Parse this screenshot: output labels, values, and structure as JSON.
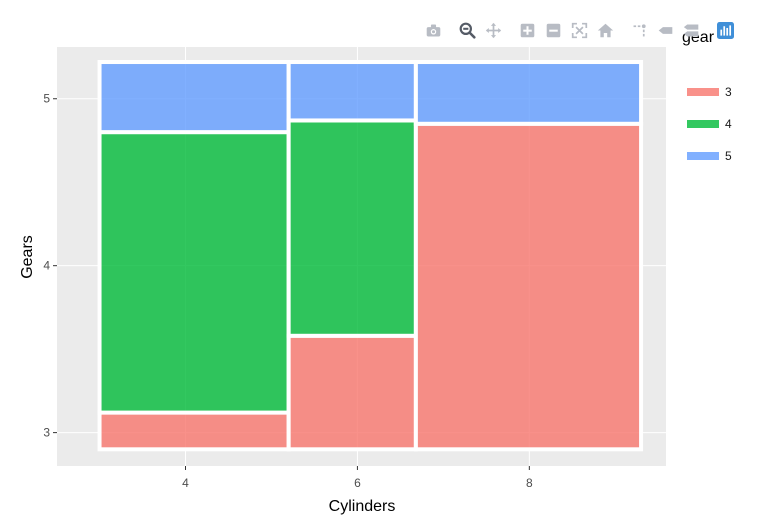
{
  "modebar": {
    "buttons": [
      {
        "name": "camera-icon",
        "title": "Download plot as a png"
      },
      {
        "name": "zoom-icon",
        "title": "Zoom"
      },
      {
        "name": "pan-icon",
        "title": "Pan"
      },
      {
        "name": "zoom-in-icon",
        "title": "Zoom in"
      },
      {
        "name": "zoom-out-icon",
        "title": "Zoom out"
      },
      {
        "name": "autoscale-icon",
        "title": "Autoscale"
      },
      {
        "name": "home-icon",
        "title": "Reset axes"
      },
      {
        "name": "spike-lines-icon",
        "title": "Toggle Spike Lines"
      },
      {
        "name": "hover-closest-icon",
        "title": "Show closest data on hover"
      },
      {
        "name": "hover-compare-icon",
        "title": "Compare data on hover"
      },
      {
        "name": "plotly-logo-icon",
        "title": "Produced with Plotly"
      }
    ]
  },
  "chart_data": {
    "type": "bar",
    "subtype": "mosaic",
    "xlabel": "Cylinders",
    "ylabel": "Gears",
    "legend_title": "gear",
    "legend_position": "right",
    "grid": true,
    "colors": {
      "3": "#F8766D",
      "4": "#00BA38",
      "5": "#619CFF",
      "panel": "#EBEBEB",
      "grid": "#FFFFFF"
    },
    "x_ticks": [
      4,
      6,
      8
    ],
    "y_ticks": [
      3,
      4,
      5
    ],
    "columns": [
      {
        "label": "4",
        "x_start": 3.0,
        "x_end": 5.2,
        "segments": [
          {
            "gear": "3",
            "y_start": 2.9,
            "y_end": 3.12
          },
          {
            "gear": "4",
            "y_start": 3.12,
            "y_end": 4.8
          },
          {
            "gear": "5",
            "y_start": 4.8,
            "y_end": 5.22
          }
        ]
      },
      {
        "label": "6",
        "x_start": 5.2,
        "x_end": 6.68,
        "segments": [
          {
            "gear": "3",
            "y_start": 2.9,
            "y_end": 3.58
          },
          {
            "gear": "4",
            "y_start": 3.58,
            "y_end": 4.87
          },
          {
            "gear": "5",
            "y_start": 4.87,
            "y_end": 5.22
          }
        ]
      },
      {
        "label": "8",
        "x_start": 6.68,
        "x_end": 9.3,
        "segments": [
          {
            "gear": "3",
            "y_start": 2.9,
            "y_end": 4.85
          },
          {
            "gear": "5",
            "y_start": 4.85,
            "y_end": 5.22
          }
        ]
      }
    ],
    "legend": [
      {
        "label": "3",
        "gear": "3"
      },
      {
        "label": "4",
        "gear": "4"
      },
      {
        "label": "5",
        "gear": "5"
      }
    ]
  }
}
